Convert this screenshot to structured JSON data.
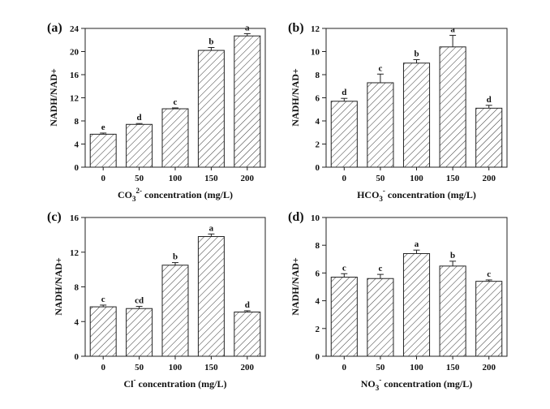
{
  "chart_data": [
    {
      "type": "bar",
      "panel_label": "(a)",
      "categories": [
        "0",
        "50",
        "100",
        "150",
        "200"
      ],
      "values": [
        5.7,
        7.4,
        10.1,
        20.2,
        22.7
      ],
      "errors": [
        0.2,
        0.15,
        0.15,
        0.5,
        0.4
      ],
      "significance": [
        "e",
        "d",
        "c",
        "b",
        "a"
      ],
      "ylabel": "NADH/NAD+",
      "xlabel_parts": [
        "CO",
        "3",
        "2-",
        " concentration (mg/L)"
      ],
      "ylim": [
        0,
        24
      ],
      "yticks": [
        0,
        4,
        8,
        12,
        16,
        20,
        24
      ]
    },
    {
      "type": "bar",
      "panel_label": "(b)",
      "categories": [
        "0",
        "50",
        "100",
        "150",
        "200"
      ],
      "values": [
        5.7,
        7.3,
        9.0,
        10.4,
        5.1
      ],
      "errors": [
        0.25,
        0.75,
        0.3,
        1.0,
        0.25
      ],
      "significance": [
        "d",
        "c",
        "b",
        "a",
        "d"
      ],
      "ylabel": "NADH/NAD+",
      "xlabel_parts": [
        "HCO",
        "3",
        "-",
        " concentration (mg/L)"
      ],
      "ylim": [
        0,
        12
      ],
      "yticks": [
        0,
        2,
        4,
        6,
        8,
        10,
        12
      ]
    },
    {
      "type": "bar",
      "panel_label": "(c)",
      "categories": [
        "0",
        "50",
        "100",
        "150",
        "200"
      ],
      "values": [
        5.7,
        5.5,
        10.5,
        13.8,
        5.1
      ],
      "errors": [
        0.2,
        0.25,
        0.3,
        0.3,
        0.15
      ],
      "significance": [
        "c",
        "cd",
        "b",
        "a",
        "d"
      ],
      "ylabel": "NADH/NAD+",
      "xlabel_parts": [
        "Cl",
        "",
        "-",
        " concentration (mg/L)"
      ],
      "ylim": [
        0,
        16
      ],
      "yticks": [
        0,
        4,
        8,
        12,
        16
      ]
    },
    {
      "type": "bar",
      "panel_label": "(d)",
      "categories": [
        "0",
        "50",
        "100",
        "150",
        "200"
      ],
      "values": [
        5.7,
        5.6,
        7.4,
        6.5,
        5.4
      ],
      "errors": [
        0.25,
        0.3,
        0.25,
        0.35,
        0.1
      ],
      "significance": [
        "c",
        "c",
        "a",
        "b",
        "c"
      ],
      "ylabel": "NADH/NAD+",
      "xlabel_parts": [
        "NO",
        "3",
        "-",
        " concentration (mg/L)"
      ],
      "ylim": [
        0,
        10
      ],
      "yticks": [
        0,
        2,
        4,
        6,
        8,
        10
      ]
    }
  ]
}
